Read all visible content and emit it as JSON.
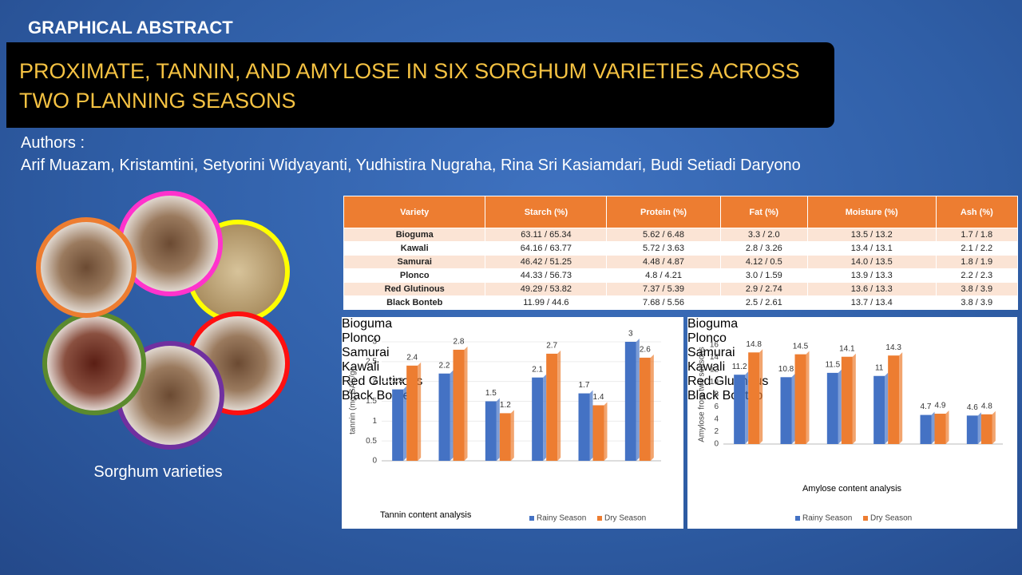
{
  "header": {
    "label": "GRAPHICAL ABSTRACT",
    "title": "PROXIMATE, TANNIN, AND AMYLOSE IN SIX SORGHUM VARIETIES ACROSS TWO PLANNING SEASONS"
  },
  "authors": {
    "label": "Authors :",
    "names": "Arif Muazam, Kristamtini, Setyorini Widyayanti, Yudhistira Nugraha, Rina Sri Kasiamdari, Budi Setiadi Daryono"
  },
  "photos": {
    "caption": "Sorghum varieties"
  },
  "table": {
    "header": [
      "Variety",
      "Starch (%)",
      "Protein (%)",
      "Fat (%)",
      "Moisture (%)",
      "Ash (%)"
    ],
    "rows": [
      [
        "Bioguma",
        "63.11 / 65.34",
        "5.62 / 6.48",
        "3.3 / 2.0",
        "13.5 / 13.2",
        "1.7 / 1.8"
      ],
      [
        "Kawali",
        "64.16 / 63.77",
        "5.72 / 3.63",
        "2.8 / 3.26",
        "13.4 / 13.1",
        "2.1 / 2.2"
      ],
      [
        "Samurai",
        "46.42 / 51.25",
        "4.48 / 4.87",
        "4.12 / 0.5",
        "14.0 / 13.5",
        "1.8 / 1.9"
      ],
      [
        "Plonco",
        "44.33 / 56.73",
        "4.8 / 4.21",
        "3.0 / 1.59",
        "13.9 / 13.3",
        "2.2 / 2.3"
      ],
      [
        "Red Glutinous",
        "49.29 / 53.82",
        "7.37 / 5.39",
        "2.9 / 2.74",
        "13.6 / 13.3",
        "3.8 / 3.9"
      ],
      [
        "Black Bonteb",
        "11.99 / 44.6",
        "7.68 / 5.56",
        "2.5 / 2.61",
        "13.7 / 13.4",
        "3.8 / 3.9"
      ]
    ]
  },
  "chart_data": [
    {
      "type": "bar",
      "title": "Tannin content analysis",
      "y_label": "tannin (mg GAE/g)",
      "categories": [
        "Bioguma",
        "Plonco",
        "Samurai",
        "Kawali",
        "Red Glutinous",
        "Black Bonteb"
      ],
      "series": [
        {
          "name": "Rainy Season",
          "color": "#4472c4",
          "values": [
            1.8,
            2.2,
            1.5,
            2.1,
            1.7,
            3
          ]
        },
        {
          "name": "Dry Season",
          "color": "#ed7d31",
          "values": [
            2.4,
            2.8,
            1.2,
            2.7,
            1.4,
            2.6
          ]
        }
      ],
      "ylim": [
        0,
        3
      ],
      "yticks": [
        0,
        0.5,
        1,
        1.5,
        2,
        2.5,
        3
      ],
      "grid": true,
      "legend": "bottom"
    },
    {
      "type": "bar",
      "title": "Amylose content analysis",
      "y_label": "Amylose from two seasons",
      "categories": [
        "Bioguma",
        "Plonco",
        "Samurai",
        "Kawali",
        "Red Glutinous",
        "Black Bonteb"
      ],
      "series": [
        {
          "name": "Rainy Season",
          "color": "#4472c4",
          "values": [
            11.2,
            10.8,
            11.5,
            11,
            4.7,
            4.6
          ]
        },
        {
          "name": "Dry Season",
          "color": "#ed7d31",
          "values": [
            14.8,
            14.5,
            14.1,
            14.3,
            4.9,
            4.8
          ]
        }
      ],
      "ylim": [
        0,
        16
      ],
      "yticks": [
        0,
        2,
        4,
        6,
        8,
        10,
        12,
        14,
        16
      ],
      "grid": false,
      "legend": "bottom"
    }
  ]
}
